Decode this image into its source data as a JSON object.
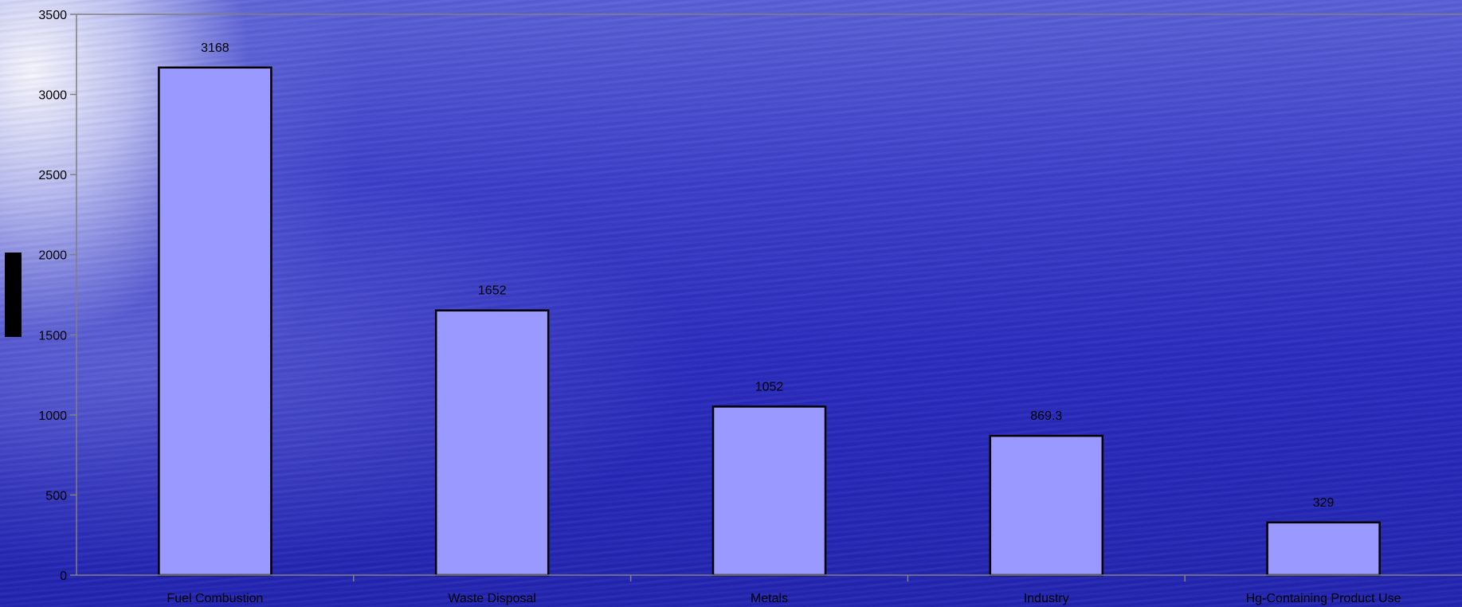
{
  "chart_data": {
    "type": "bar",
    "title": "",
    "xlabel": "",
    "ylabel": "",
    "categories": [
      "Fuel Combustion",
      "Waste Disposal",
      "Metals",
      "Industry",
      "Hg-Containing Product Use"
    ],
    "values": [
      3168,
      1652,
      1052,
      869.3,
      329
    ],
    "data_labels": [
      "3168",
      "1652",
      "1052",
      "869.3",
      "329"
    ],
    "ylim": [
      0,
      3500
    ],
    "yticks": [
      0,
      500,
      1000,
      1500,
      2000,
      2500,
      3000,
      3500
    ],
    "grid": false,
    "legend": "none",
    "colors": {
      "bar_fill": "#9999ff",
      "bar_stroke": "#000000",
      "axis": "#808080",
      "text": "#000000"
    }
  }
}
